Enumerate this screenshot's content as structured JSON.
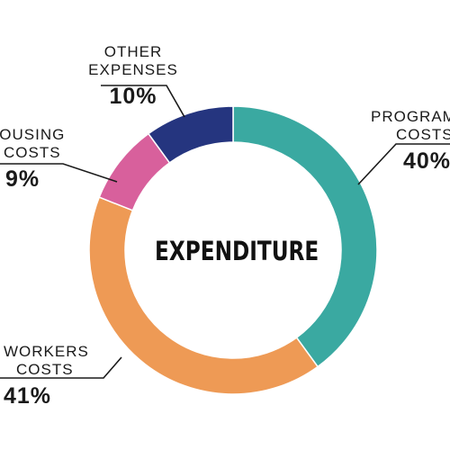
{
  "chart_data": {
    "type": "pie",
    "style": "donut",
    "center_label": "EXPENDITURE",
    "start_angle_deg": 0,
    "direction": "clockwise",
    "slices": [
      {
        "label_lines": [
          "PROGRAM",
          "COSTS"
        ],
        "value": 40,
        "value_label": "40%",
        "color": "#3aa9a1"
      },
      {
        "label_lines": [
          "WORKERS",
          "COSTS"
        ],
        "value": 41,
        "value_label": "41%",
        "color": "#ee9a55"
      },
      {
        "label_lines": [
          "HOUSING",
          "COSTS"
        ],
        "value": 9,
        "value_label": "9%",
        "color": "#d8609c"
      },
      {
        "label_lines": [
          "OTHER",
          "EXPENSES"
        ],
        "value": 10,
        "value_label": "10%",
        "color": "#25357f"
      }
    ]
  }
}
